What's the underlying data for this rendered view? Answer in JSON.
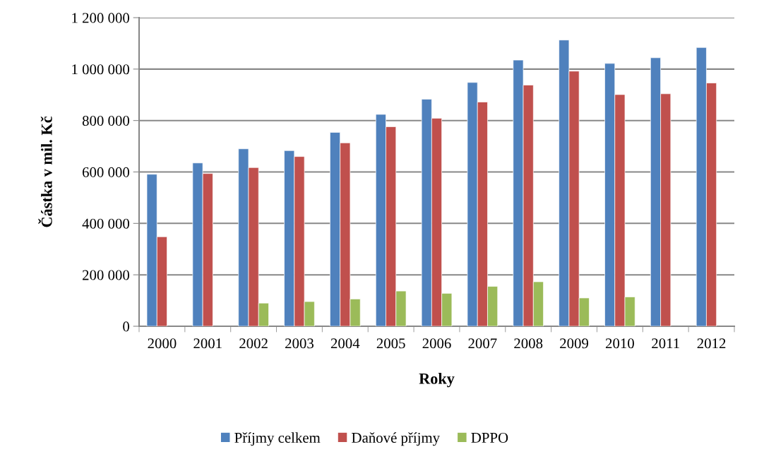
{
  "chart_data": {
    "type": "bar",
    "xlabel": "Roky",
    "ylabel": "Částka v mil. Kč",
    "categories": [
      "2000",
      "2001",
      "2002",
      "2003",
      "2004",
      "2005",
      "2006",
      "2007",
      "2008",
      "2009",
      "2010",
      "2011",
      "2012"
    ],
    "series": [
      {
        "name": "Příjmy celkem",
        "color": "#4f81bd",
        "values": [
          591000,
          635000,
          690000,
          683000,
          754000,
          824000,
          883000,
          948000,
          1035000,
          1113000,
          1022000,
          1044000,
          1084000
        ]
      },
      {
        "name": "Daňové příjmy",
        "color": "#c0504d",
        "values": [
          348000,
          594000,
          617000,
          660000,
          713000,
          776000,
          809000,
          872000,
          938000,
          992000,
          901000,
          904000,
          946000
        ]
      },
      {
        "name": "DPPO",
        "color": "#9bbb59",
        "values": [
          null,
          null,
          90000,
          96000,
          106000,
          137000,
          128000,
          155000,
          173000,
          110000,
          114000,
          null,
          null
        ]
      }
    ],
    "ylim": [
      0,
      1200000
    ],
    "yticks": [
      0,
      {
        "value": 200000,
        "label": "200 000"
      },
      {
        "value": 400000,
        "label": "400 000"
      },
      {
        "value": 600000,
        "label": "600 000"
      },
      {
        "value": 800000,
        "label": "800 000"
      },
      {
        "value": 1000000,
        "label": "1 000 000"
      },
      {
        "value": 1200000,
        "label": "1 200 000"
      }
    ],
    "grid": "y",
    "legend": "bottom"
  }
}
